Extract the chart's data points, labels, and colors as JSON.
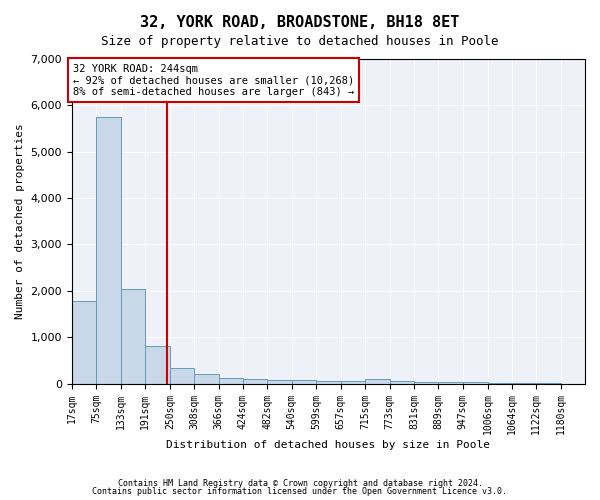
{
  "title": "32, YORK ROAD, BROADSTONE, BH18 8ET",
  "subtitle": "Size of property relative to detached houses in Poole",
  "xlabel": "Distribution of detached houses by size in Poole",
  "ylabel": "Number of detached properties",
  "bin_labels": [
    "17sqm",
    "75sqm",
    "133sqm",
    "191sqm",
    "250sqm",
    "308sqm",
    "366sqm",
    "424sqm",
    "482sqm",
    "540sqm",
    "599sqm",
    "657sqm",
    "715sqm",
    "773sqm",
    "831sqm",
    "889sqm",
    "947sqm",
    "1006sqm",
    "1064sqm",
    "1122sqm",
    "1180sqm"
  ],
  "bin_edges": [
    17,
    75,
    133,
    191,
    250,
    308,
    366,
    424,
    482,
    540,
    599,
    657,
    715,
    773,
    831,
    889,
    947,
    1006,
    1064,
    1122,
    1180,
    1238
  ],
  "bar_heights": [
    1780,
    5750,
    2050,
    810,
    340,
    200,
    120,
    90,
    80,
    70,
    60,
    55,
    100,
    50,
    40,
    30,
    25,
    20,
    15,
    10,
    0
  ],
  "bar_color": "#c8d8e8",
  "bar_edgecolor": "#6699bb",
  "vline_x": 244,
  "vline_color": "#cc0000",
  "ylim": [
    0,
    7000
  ],
  "annotation_text": "32 YORK ROAD: 244sqm\n← 92% of detached houses are smaller (10,268)\n8% of semi-detached houses are larger (843) →",
  "annotation_box_color": "#ffffff",
  "annotation_box_edgecolor": "#cc0000",
  "footer1": "Contains HM Land Registry data © Crown copyright and database right 2024.",
  "footer2": "Contains public sector information licensed under the Open Government Licence v3.0."
}
